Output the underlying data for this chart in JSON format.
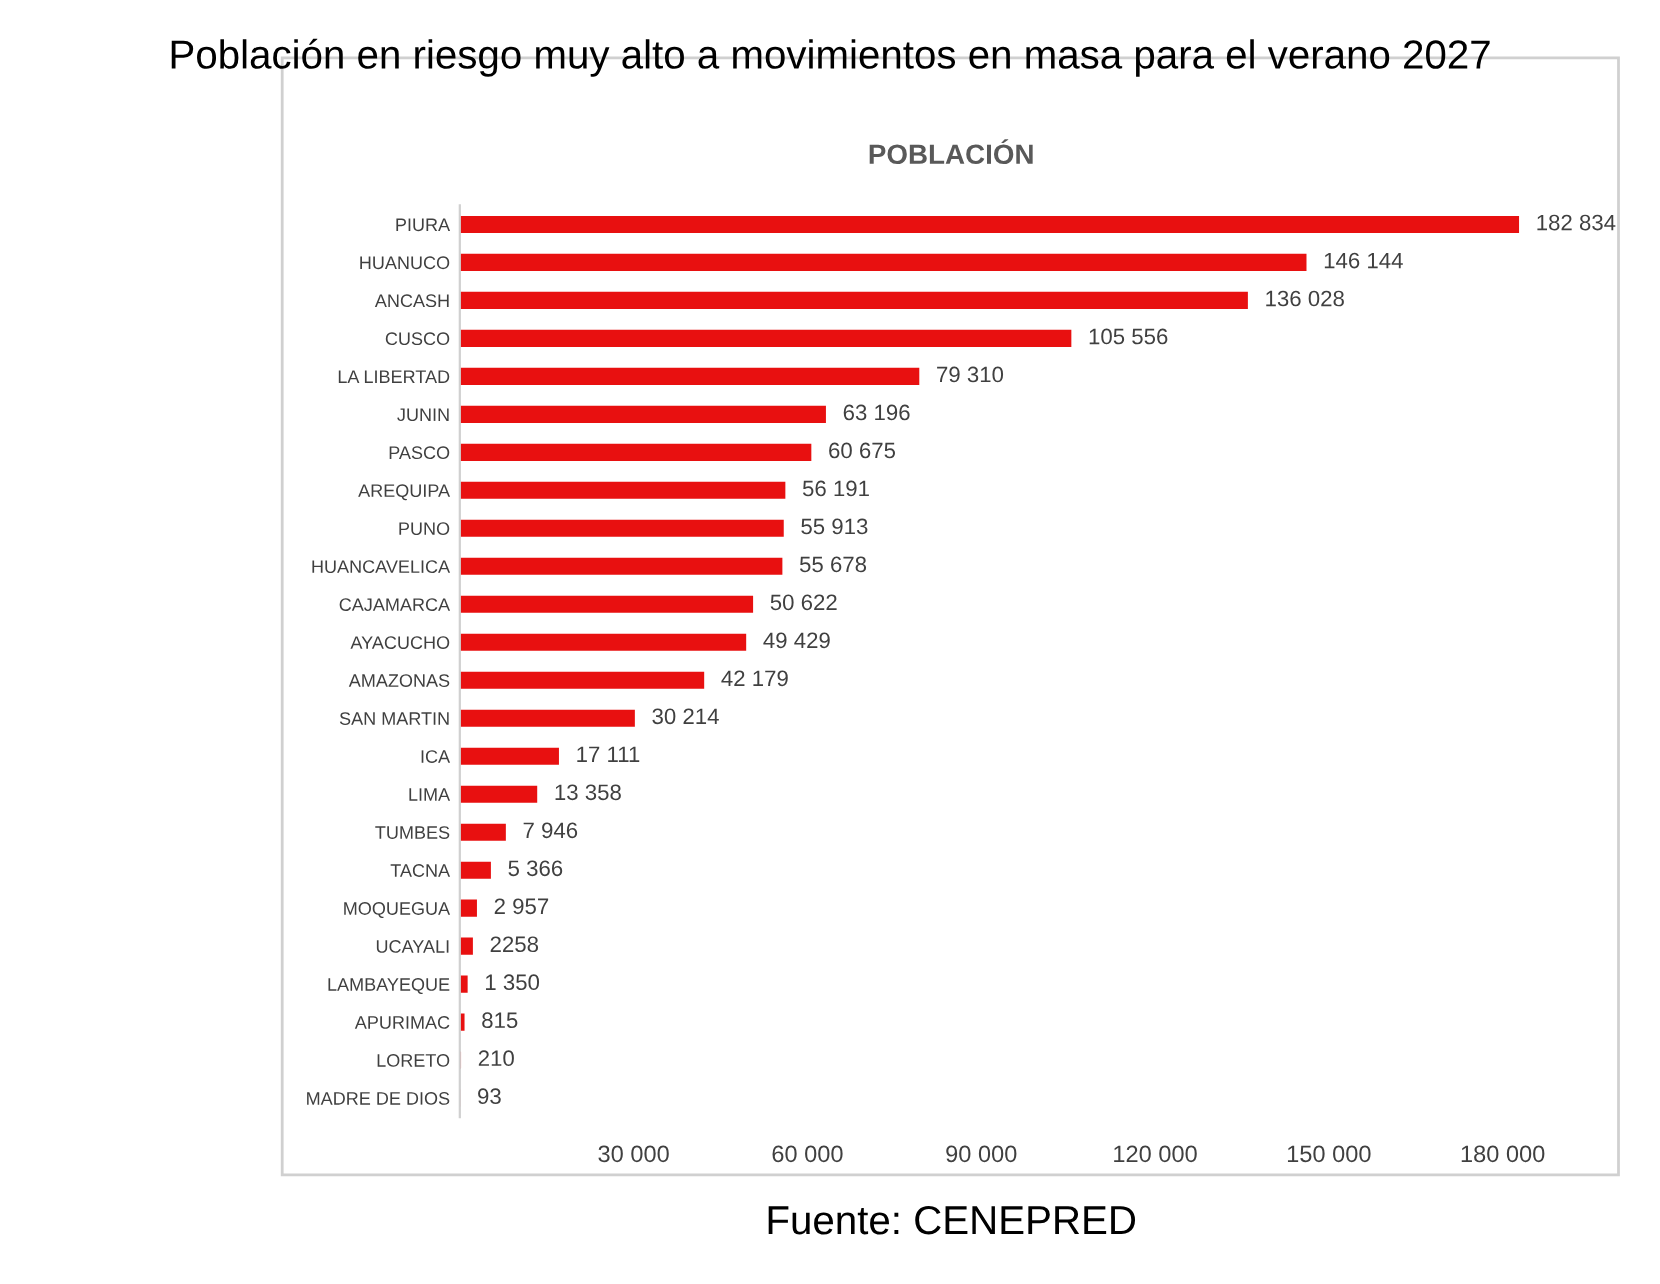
{
  "chart_data": {
    "type": "bar",
    "orientation": "horizontal",
    "title": "Población en riesgo muy alto a movimientos en masa para el verano 2027",
    "subtitle": "POBLACIÓN",
    "categories": [
      "PIURA",
      "HUANUCO",
      "ANCASH",
      "CUSCO",
      "LA LIBERTAD",
      "JUNIN",
      "PASCO",
      "AREQUIPA",
      "PUNO",
      "HUANCAVELICA",
      "CAJAMARCA",
      "AYACUCHO",
      "AMAZONAS",
      "SAN MARTIN",
      "ICA",
      "LIMA",
      "TUMBES",
      "TACNA",
      "MOQUEGUA",
      "UCAYALI",
      "LAMBAYEQUE",
      "APURIMAC",
      "LORETO",
      "MADRE DE DIOS"
    ],
    "values": [
      182834,
      146144,
      136028,
      105556,
      79310,
      63196,
      60675,
      56191,
      55913,
      55678,
      50622,
      49429,
      42179,
      30214,
      17111,
      13358,
      7946,
      5366,
      2957,
      2258,
      1350,
      815,
      210,
      93
    ],
    "value_labels": [
      "182 834",
      "146 144",
      "136 028",
      "105 556",
      "79 310",
      "63 196",
      "60 675",
      "56 191",
      "55 913",
      "55 678",
      "50 622",
      "49 429",
      "42 179",
      "30 214",
      "17 111",
      "13 358",
      "7 946",
      "5 366",
      "2 957",
      "2258",
      "1 350",
      "815",
      "210",
      "93"
    ],
    "color": "#e81010",
    "xlim": [
      0,
      200000
    ],
    "xticks": [
      {
        "value": 30000,
        "label": "30 000"
      },
      {
        "value": 60000,
        "label": "60 000"
      },
      {
        "value": 90000,
        "label": "90 000"
      },
      {
        "value": 120000,
        "label": "120 000"
      },
      {
        "value": 150000,
        "label": "150 000"
      },
      {
        "value": 180000,
        "label": "180 000"
      }
    ],
    "grid": false,
    "legend": false,
    "annotations": [
      "Fuente: CENEPRED"
    ]
  }
}
